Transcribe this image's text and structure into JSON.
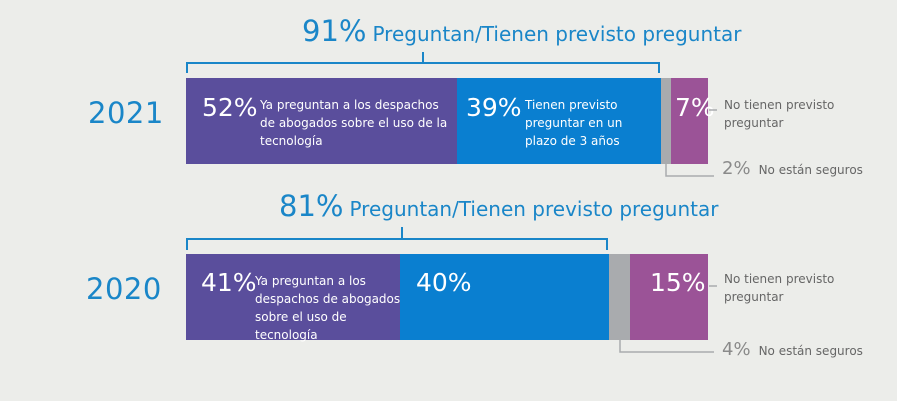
{
  "colors": {
    "year_text": "#1a86c8",
    "already_ask": "#5a4e9c",
    "plan_to_ask": "#0a7fd0",
    "unsure": "#a9abae",
    "no_plan": "#9b5397",
    "bracket": "#1a86c8"
  },
  "rows": [
    {
      "year": "2021",
      "bracket_pct": "91%",
      "bracket_label": "Preguntan/Tienen previsto preguntar",
      "segments": [
        {
          "pct": "52%",
          "label": "Ya preguntan a los despachos de abogados sobre el uso de la tecnología"
        },
        {
          "pct": "39%",
          "label": "Tienen previsto preguntar en un plazo de 3 años"
        },
        {
          "pct": "",
          "label": ""
        },
        {
          "pct": "7%",
          "label": ""
        }
      ],
      "no_plan_label": "No tienen previsto preguntar",
      "unsure_pct": "2%",
      "unsure_label": "No están seguros"
    },
    {
      "year": "2020",
      "bracket_pct": "81%",
      "bracket_label": "Preguntan/Tienen previsto preguntar",
      "segments": [
        {
          "pct": "41%",
          "label": "Ya preguntan a los despachos de abogados sobre el uso de tecnología"
        },
        {
          "pct": "40%",
          "label": ""
        },
        {
          "pct": "",
          "label": ""
        },
        {
          "pct": "15%",
          "label": ""
        }
      ],
      "no_plan_label": "No tienen previsto preguntar",
      "unsure_pct": "4%",
      "unsure_label": "No están seguros"
    }
  ],
  "chart_data": {
    "type": "bar",
    "orientation": "horizontal",
    "stacked": true,
    "categories": [
      "2021",
      "2020"
    ],
    "series": [
      {
        "name": "Ya preguntan a los despachos de abogados sobre el uso de la tecnología",
        "values": [
          52,
          41
        ]
      },
      {
        "name": "Tienen previsto preguntar en un plazo de 3 años",
        "values": [
          39,
          40
        ]
      },
      {
        "name": "No están seguros",
        "values": [
          2,
          4
        ]
      },
      {
        "name": "No tienen previsto preguntar",
        "values": [
          7,
          15
        ]
      }
    ],
    "totals_bracket": {
      "label": "Preguntan/Tienen previsto preguntar",
      "values": [
        91,
        81
      ]
    },
    "xlim": [
      0,
      100
    ],
    "grid": false
  }
}
